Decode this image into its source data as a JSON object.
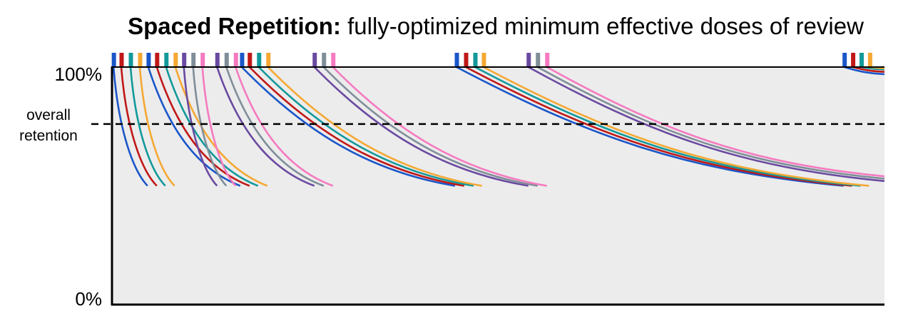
{
  "chart_data": {
    "type": "line",
    "title_bold": "Spaced Repetition:",
    "title_rest": " fully-optimized minimum effective doses of review",
    "y_ticks": [
      {
        "value": 100,
        "label": "100%"
      },
      {
        "value": 0,
        "label": "0%"
      }
    ],
    "threshold": {
      "value": 76,
      "label_line1": "overall",
      "label_line2": "retention"
    },
    "x_range": [
      0,
      100
    ],
    "y_range": [
      0,
      100
    ],
    "colors": {
      "blue": "#1a56c8",
      "red": "#c01818",
      "teal": "#12999a",
      "orange": "#f5a833",
      "purple": "#6a4aa0",
      "gray": "#7f8e99",
      "pink": "#f57ac0",
      "plot_bg": "#ececec",
      "axis": "#000000"
    },
    "series": [
      {
        "color": "blue",
        "x_start": 0.2,
        "x_end": 4.6,
        "y_end": 50,
        "curve": "steep"
      },
      {
        "color": "red",
        "x_start": 1.2,
        "x_end": 5.8,
        "y_end": 50,
        "curve": "steep"
      },
      {
        "color": "teal",
        "x_start": 2.4,
        "x_end": 6.9,
        "y_end": 50,
        "curve": "steep"
      },
      {
        "color": "orange",
        "x_start": 3.6,
        "x_end": 8.1,
        "y_end": 50,
        "curve": "steep"
      },
      {
        "color": "blue",
        "x_start": 4.7,
        "x_end": 16.6,
        "y_end": 50,
        "curve": "medium"
      },
      {
        "color": "red",
        "x_start": 5.8,
        "x_end": 17.8,
        "y_end": 50,
        "curve": "medium"
      },
      {
        "color": "teal",
        "x_start": 7.0,
        "x_end": 18.9,
        "y_end": 50,
        "curve": "medium"
      },
      {
        "color": "orange",
        "x_start": 8.2,
        "x_end": 20.1,
        "y_end": 50,
        "curve": "medium"
      },
      {
        "color": "purple",
        "x_start": 9.3,
        "x_end": 13.6,
        "y_end": 50,
        "curve": "steep"
      },
      {
        "color": "gray",
        "x_start": 10.5,
        "x_end": 14.8,
        "y_end": 50,
        "curve": "steep"
      },
      {
        "color": "pink",
        "x_start": 11.7,
        "x_end": 16.0,
        "y_end": 50,
        "curve": "steep"
      },
      {
        "color": "purple",
        "x_start": 13.6,
        "x_end": 26.2,
        "y_end": 50,
        "curve": "medium"
      },
      {
        "color": "gray",
        "x_start": 14.8,
        "x_end": 27.4,
        "y_end": 50,
        "curve": "medium"
      },
      {
        "color": "pink",
        "x_start": 16.0,
        "x_end": 28.6,
        "y_end": 50,
        "curve": "medium"
      },
      {
        "color": "blue",
        "x_start": 16.8,
        "x_end": 44.4,
        "y_end": 50,
        "curve": "shallow"
      },
      {
        "color": "red",
        "x_start": 17.8,
        "x_end": 45.6,
        "y_end": 50,
        "curve": "shallow"
      },
      {
        "color": "teal",
        "x_start": 19.0,
        "x_end": 46.8,
        "y_end": 50,
        "curve": "shallow"
      },
      {
        "color": "orange",
        "x_start": 20.2,
        "x_end": 47.9,
        "y_end": 50,
        "curve": "shallow"
      },
      {
        "color": "purple",
        "x_start": 26.2,
        "x_end": 53.9,
        "y_end": 50,
        "curve": "shallow"
      },
      {
        "color": "gray",
        "x_start": 27.4,
        "x_end": 55.1,
        "y_end": 50,
        "curve": "shallow"
      },
      {
        "color": "pink",
        "x_start": 28.6,
        "x_end": 56.3,
        "y_end": 50,
        "curve": "shallow"
      },
      {
        "color": "blue",
        "x_start": 44.6,
        "x_end": 94.7,
        "y_end": 50,
        "curve": "flat"
      },
      {
        "color": "red",
        "x_start": 45.8,
        "x_end": 95.8,
        "y_end": 50,
        "curve": "flat"
      },
      {
        "color": "teal",
        "x_start": 47.0,
        "x_end": 96.9,
        "y_end": 50,
        "curve": "flat"
      },
      {
        "color": "orange",
        "x_start": 48.1,
        "x_end": 98.0,
        "y_end": 50,
        "curve": "flat"
      },
      {
        "color": "purple",
        "x_start": 53.9,
        "x_end": 100,
        "y_end": 52,
        "curve": "flat"
      },
      {
        "color": "gray",
        "x_start": 55.1,
        "x_end": 100,
        "y_end": 53,
        "curve": "flat"
      },
      {
        "color": "pink",
        "x_start": 56.3,
        "x_end": 100,
        "y_end": 54,
        "curve": "flat"
      },
      {
        "color": "blue",
        "x_start": 94.8,
        "x_end": 100,
        "y_end": 97,
        "curve": "flat"
      },
      {
        "color": "red",
        "x_start": 95.9,
        "x_end": 100,
        "y_end": 98,
        "curve": "flat"
      },
      {
        "color": "teal",
        "x_start": 97.0,
        "x_end": 100,
        "y_end": 99,
        "curve": "flat"
      },
      {
        "color": "orange",
        "x_start": 98.1,
        "x_end": 100,
        "y_end": 99.5,
        "curve": "flat"
      }
    ],
    "review_markers": [
      {
        "x": 0.2,
        "color": "blue"
      },
      {
        "x": 1.2,
        "color": "red"
      },
      {
        "x": 2.4,
        "color": "teal"
      },
      {
        "x": 3.6,
        "color": "orange"
      },
      {
        "x": 4.7,
        "color": "blue"
      },
      {
        "x": 5.8,
        "color": "red"
      },
      {
        "x": 7.0,
        "color": "teal"
      },
      {
        "x": 8.2,
        "color": "orange"
      },
      {
        "x": 9.3,
        "color": "purple"
      },
      {
        "x": 10.5,
        "color": "gray"
      },
      {
        "x": 11.7,
        "color": "pink"
      },
      {
        "x": 13.6,
        "color": "purple"
      },
      {
        "x": 14.8,
        "color": "gray"
      },
      {
        "x": 16.0,
        "color": "pink"
      },
      {
        "x": 16.8,
        "color": "blue"
      },
      {
        "x": 17.8,
        "color": "red"
      },
      {
        "x": 19.0,
        "color": "teal"
      },
      {
        "x": 20.2,
        "color": "orange"
      },
      {
        "x": 26.2,
        "color": "purple"
      },
      {
        "x": 27.4,
        "color": "gray"
      },
      {
        "x": 28.6,
        "color": "pink"
      },
      {
        "x": 44.6,
        "color": "blue"
      },
      {
        "x": 45.8,
        "color": "red"
      },
      {
        "x": 47.0,
        "color": "teal"
      },
      {
        "x": 48.1,
        "color": "orange"
      },
      {
        "x": 53.9,
        "color": "purple"
      },
      {
        "x": 55.1,
        "color": "gray"
      },
      {
        "x": 56.3,
        "color": "pink"
      },
      {
        "x": 94.8,
        "color": "blue"
      },
      {
        "x": 95.9,
        "color": "red"
      },
      {
        "x": 97.0,
        "color": "teal"
      },
      {
        "x": 98.1,
        "color": "orange"
      }
    ]
  }
}
